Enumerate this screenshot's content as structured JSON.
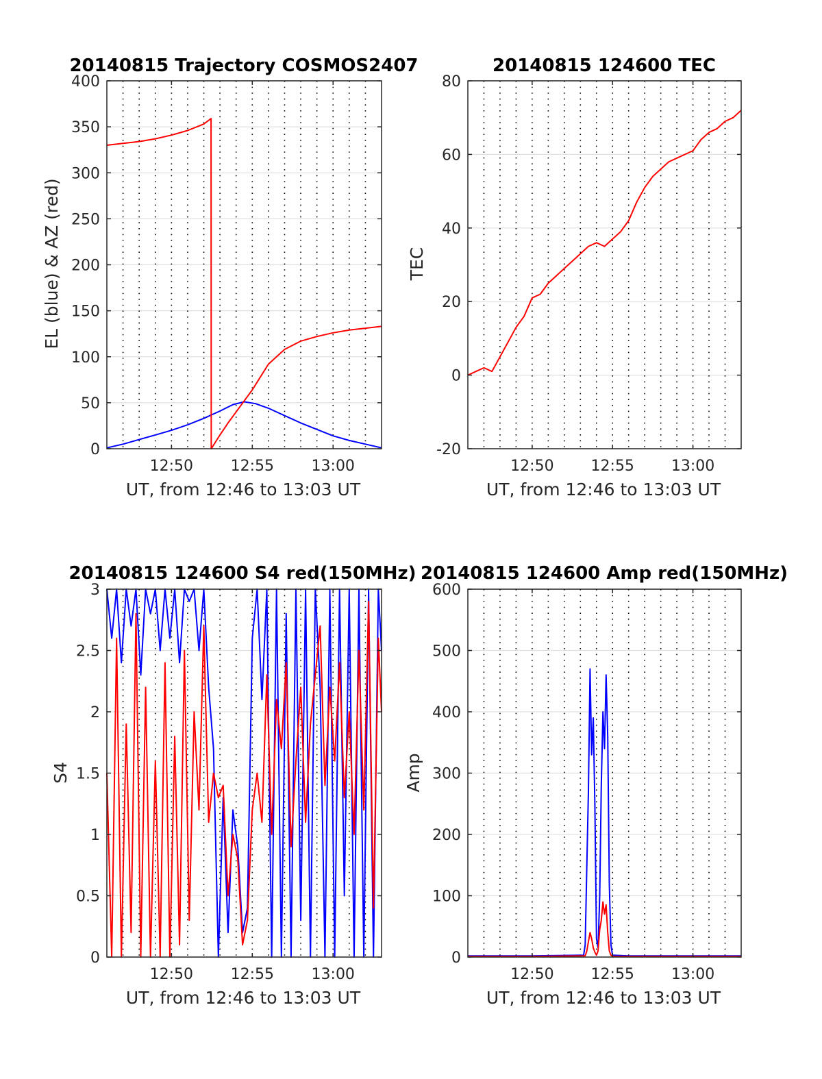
{
  "figure": {
    "date": "20140815",
    "time_window_label": "UT, from 12:46 to 13:03 UT"
  },
  "chart_data": [
    {
      "type": "line",
      "title": "20140815 Trajectory COSMOS2407",
      "xlabel": "UT, from 12:46 to 13:03 UT",
      "ylabel": "EL (blue) & AZ (red)",
      "xlim": [
        46,
        63
      ],
      "ylim": [
        0,
        400
      ],
      "x_unit": "minutes after 12:00 UT",
      "xticks": [
        50,
        55,
        60
      ],
      "xtick_labels": [
        "12:50",
        "12:55",
        "13:00"
      ],
      "yticks": [
        0,
        50,
        100,
        150,
        200,
        250,
        300,
        350,
        400
      ],
      "ytick_labels": [
        "0",
        "50",
        "100",
        "150",
        "200",
        "250",
        "300",
        "350",
        "400"
      ],
      "grid": true,
      "series": [
        {
          "color": "#0000ff",
          "x": [
            46,
            47,
            48,
            49,
            50,
            51,
            52,
            53,
            53.8,
            54.5,
            55.2,
            56,
            57,
            58,
            59,
            60,
            61,
            62,
            63
          ],
          "y": [
            1,
            5,
            10,
            15,
            20,
            26,
            33,
            41,
            48,
            51,
            49,
            44,
            36,
            28,
            21,
            14,
            9,
            5,
            1
          ]
        },
        {
          "color": "#ff0000",
          "x": [
            46,
            47,
            48,
            49,
            50,
            51,
            52,
            52.45,
            52.46,
            53,
            53.5,
            54,
            54.5,
            55,
            55.5,
            56,
            57,
            58,
            59,
            60,
            61,
            62,
            63
          ],
          "y": [
            330,
            332,
            334,
            337,
            341,
            346,
            353,
            359,
            0,
            15,
            28,
            40,
            52,
            64,
            78,
            92,
            108,
            117,
            122,
            126,
            129,
            131,
            133
          ]
        }
      ]
    },
    {
      "type": "line",
      "title": "20140815 124600 TEC",
      "xlabel": "UT, from 12:46 to 13:03 UT",
      "ylabel": "TEC",
      "xlim": [
        46,
        63
      ],
      "ylim": [
        -20,
        80
      ],
      "x_unit": "minutes after 12:00 UT",
      "xticks": [
        50,
        55,
        60
      ],
      "xtick_labels": [
        "12:50",
        "12:55",
        "13:00"
      ],
      "yticks": [
        -20,
        0,
        20,
        40,
        60,
        80
      ],
      "ytick_labels": [
        "-20",
        "0",
        "20",
        "40",
        "60",
        "80"
      ],
      "grid": true,
      "series": [
        {
          "color": "#ff0000",
          "x": [
            46,
            46.5,
            47,
            47.5,
            48,
            48.5,
            49,
            49.5,
            50,
            50.5,
            51,
            51.5,
            52,
            52.5,
            53,
            53.5,
            54,
            54.5,
            55,
            55.5,
            56,
            56.5,
            57,
            57.5,
            58,
            58.5,
            59,
            59.5,
            60,
            60.5,
            61,
            61.5,
            62,
            62.5,
            63
          ],
          "y": [
            0,
            1,
            2,
            1,
            5,
            9,
            13,
            16,
            21,
            22,
            25,
            27,
            29,
            31,
            33,
            35,
            36,
            35,
            37,
            39,
            42,
            47,
            51,
            54,
            56,
            58,
            59,
            60,
            61,
            64,
            66,
            67,
            69,
            70,
            72
          ]
        }
      ]
    },
    {
      "type": "line",
      "title": "20140815 124600 S4 red(150MHz)",
      "xlabel": "UT, from 12:46 to 13:03 UT",
      "ylabel": "S4",
      "xlim": [
        46,
        63
      ],
      "ylim": [
        0,
        3
      ],
      "x_unit": "minutes after 12:00 UT",
      "xticks": [
        50,
        55,
        60
      ],
      "xtick_labels": [
        "12:50",
        "12:55",
        "13:00"
      ],
      "yticks": [
        0,
        0.5,
        1,
        1.5,
        2,
        2.5,
        3
      ],
      "ytick_labels": [
        "0",
        "0.5",
        "1",
        "1.5",
        "2",
        "2.5",
        "3"
      ],
      "grid": true,
      "series": [
        {
          "color": "#0000ff",
          "x": [
            46,
            46.3,
            46.6,
            46.9,
            47.2,
            47.5,
            47.8,
            48.1,
            48.4,
            48.7,
            49,
            49.3,
            49.6,
            49.9,
            50.2,
            50.5,
            50.8,
            51.1,
            51.4,
            51.7,
            52,
            52.3,
            52.6,
            52.9,
            53.2,
            53.5,
            53.8,
            54.1,
            54.4,
            54.7,
            55,
            55.3,
            55.6,
            55.9,
            56.2,
            56.5,
            56.8,
            57.1,
            57.4,
            57.7,
            58,
            58.3,
            58.6,
            58.9,
            59.2,
            59.5,
            59.8,
            60.1,
            60.4,
            60.7,
            61,
            61.3,
            61.6,
            61.9,
            62.2,
            62.5,
            62.8,
            63
          ],
          "y": [
            3,
            2.6,
            3,
            2.4,
            3,
            2.7,
            3,
            2.3,
            3,
            2.8,
            3,
            2.5,
            3,
            2.6,
            3,
            2.4,
            3,
            2.9,
            3,
            2.5,
            3,
            2.2,
            1.7,
            0,
            1.3,
            0.2,
            1.2,
            0.9,
            0.2,
            0.4,
            2.6,
            3,
            2.1,
            3,
            0,
            3,
            0,
            2.8,
            0,
            3,
            0.3,
            3,
            0,
            3,
            2.2,
            0,
            3,
            0,
            3,
            0.5,
            3,
            0,
            3,
            0,
            3,
            0,
            3,
            2.5
          ]
        },
        {
          "color": "#ff0000",
          "x": [
            46,
            46.3,
            46.6,
            46.9,
            47.2,
            47.5,
            47.8,
            48.1,
            48.4,
            48.7,
            49,
            49.3,
            49.6,
            49.9,
            50.2,
            50.5,
            50.8,
            51.1,
            51.4,
            51.7,
            52,
            52.3,
            52.6,
            52.9,
            53.2,
            53.5,
            53.8,
            54.1,
            54.4,
            54.7,
            55,
            55.3,
            55.6,
            55.9,
            56.2,
            56.5,
            56.8,
            57.1,
            57.4,
            57.7,
            58,
            58.3,
            58.6,
            58.9,
            59.2,
            59.5,
            59.8,
            60.1,
            60.4,
            60.7,
            61,
            61.3,
            61.6,
            61.9,
            62.2,
            62.5,
            62.8,
            63
          ],
          "y": [
            1.5,
            0,
            2.6,
            0,
            1.9,
            0.2,
            2.8,
            0,
            2.2,
            0,
            1.6,
            0,
            2.4,
            0,
            1.8,
            0.1,
            2.5,
            0.3,
            2,
            1.2,
            2.7,
            1.1,
            1.5,
            1.3,
            1.4,
            0.5,
            1,
            0.8,
            0.1,
            0.3,
            1.2,
            1.5,
            1.1,
            2.3,
            1,
            2.1,
            1.7,
            2.4,
            0.9,
            1.6,
            2.2,
            1.1,
            1.9,
            2.3,
            2.7,
            1.4,
            2.2,
            1.6,
            2.4,
            1.3,
            2,
            1,
            2.5,
            1.2,
            2.9,
            0.4,
            2.6,
            2
          ]
        }
      ]
    },
    {
      "type": "line",
      "title": "20140815 124600 Amp red(150MHz)",
      "xlabel": "UT, from 12:46 to 13:03 UT",
      "ylabel": "Amp",
      "xlim": [
        46,
        63
      ],
      "ylim": [
        0,
        600
      ],
      "x_unit": "minutes after 12:00 UT",
      "xticks": [
        50,
        55,
        60
      ],
      "xtick_labels": [
        "12:50",
        "12:55",
        "13:00"
      ],
      "yticks": [
        0,
        100,
        200,
        300,
        400,
        500,
        600
      ],
      "ytick_labels": [
        "0",
        "100",
        "200",
        "300",
        "400",
        "500",
        "600"
      ],
      "grid": true,
      "series": [
        {
          "color": "#0000ff",
          "x": [
            46,
            50,
            53.2,
            53.3,
            53.4,
            53.5,
            53.6,
            53.7,
            53.8,
            53.9,
            54.0,
            54.1,
            54.2,
            54.3,
            54.4,
            54.5,
            54.6,
            54.7,
            54.8,
            54.9,
            55.0,
            56,
            60,
            63
          ],
          "y": [
            2,
            2,
            3,
            20,
            150,
            270,
            470,
            330,
            390,
            250,
            30,
            15,
            100,
            280,
            400,
            340,
            460,
            360,
            120,
            20,
            3,
            2,
            2,
            2
          ]
        },
        {
          "color": "#ff0000",
          "x": [
            46,
            50,
            53.3,
            53.4,
            53.5,
            53.6,
            53.7,
            53.8,
            53.9,
            54.0,
            54.1,
            54.2,
            54.3,
            54.4,
            54.5,
            54.6,
            54.7,
            54.8,
            54.9,
            55.0,
            56,
            60,
            63
          ],
          "y": [
            1,
            1,
            2,
            10,
            25,
            40,
            30,
            15,
            8,
            3,
            10,
            45,
            60,
            90,
            70,
            85,
            40,
            10,
            3,
            1,
            1,
            1,
            1
          ]
        }
      ]
    }
  ]
}
